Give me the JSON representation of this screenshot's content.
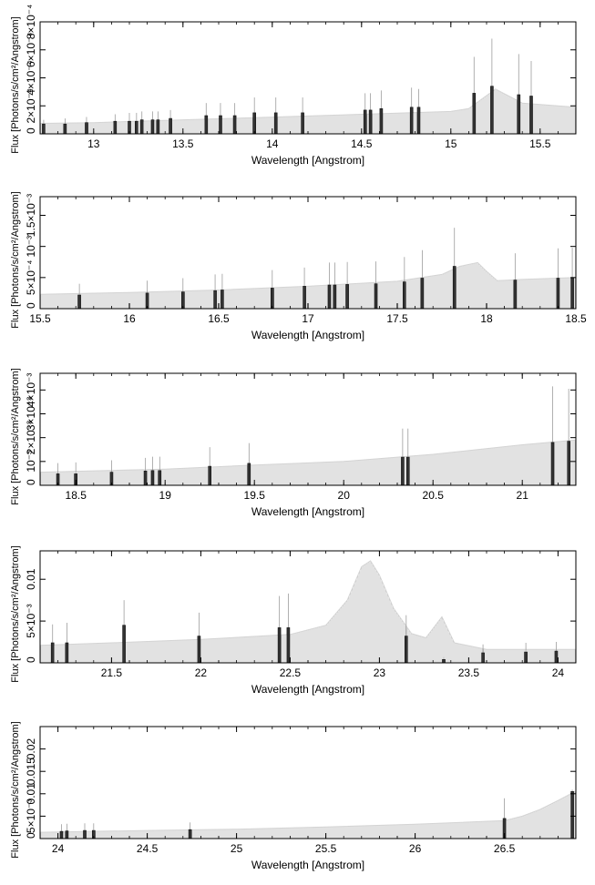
{
  "chart_data": [
    {
      "type": "bar",
      "xlabel": "Wavelength [Angstrom]",
      "ylabel": "Flux [Photons/s/cm²/Angstrom]",
      "xlim": [
        12.7,
        15.7
      ],
      "ylim": [
        0,
        0.0008
      ],
      "grid": false,
      "x_ticks": [
        13,
        13.5,
        14,
        14.5,
        15,
        15.5
      ],
      "x_tick_labels": [
        "13",
        "13.5",
        "14",
        "14.5",
        "15",
        "15.5"
      ],
      "y_ticks": [
        0,
        0.0002,
        0.0004,
        0.0006,
        0.0008
      ],
      "y_tick_labels": [
        "0",
        "2×10⁻⁴",
        "4×10⁻⁴",
        "6×10⁻⁴",
        "8×10⁻⁴"
      ],
      "continuum": [
        {
          "x": 12.7,
          "y": 7.5e-05
        },
        {
          "x": 13.0,
          "y": 8e-05
        },
        {
          "x": 13.5,
          "y": 0.0001
        },
        {
          "x": 14.0,
          "y": 0.00012
        },
        {
          "x": 14.5,
          "y": 0.00014
        },
        {
          "x": 15.0,
          "y": 0.00016
        },
        {
          "x": 15.1,
          "y": 0.00018
        },
        {
          "x": 15.25,
          "y": 0.00032
        },
        {
          "x": 15.4,
          "y": 0.00022
        },
        {
          "x": 15.7,
          "y": 0.00019
        }
      ],
      "lines": [
        {
          "x": 12.72,
          "y": 7e-05,
          "err": 3e-05
        },
        {
          "x": 12.84,
          "y": 7e-05,
          "err": 4e-05
        },
        {
          "x": 12.96,
          "y": 8e-05,
          "err": 4e-05
        },
        {
          "x": 13.12,
          "y": 9e-05,
          "err": 5e-05
        },
        {
          "x": 13.2,
          "y": 9e-05,
          "err": 6e-05
        },
        {
          "x": 13.24,
          "y": 9e-05,
          "err": 6e-05
        },
        {
          "x": 13.27,
          "y": 0.0001,
          "err": 6e-05
        },
        {
          "x": 13.33,
          "y": 0.0001,
          "err": 6e-05
        },
        {
          "x": 13.36,
          "y": 0.0001,
          "err": 6e-05
        },
        {
          "x": 13.43,
          "y": 0.00011,
          "err": 6e-05
        },
        {
          "x": 13.63,
          "y": 0.00013,
          "err": 9e-05
        },
        {
          "x": 13.71,
          "y": 0.00013,
          "err": 9e-05
        },
        {
          "x": 13.79,
          "y": 0.00013,
          "err": 9e-05
        },
        {
          "x": 13.9,
          "y": 0.00015,
          "err": 0.00011
        },
        {
          "x": 14.02,
          "y": 0.00015,
          "err": 0.00011
        },
        {
          "x": 14.17,
          "y": 0.00015,
          "err": 0.00011
        },
        {
          "x": 14.52,
          "y": 0.00017,
          "err": 0.00012
        },
        {
          "x": 14.55,
          "y": 0.00017,
          "err": 0.00012
        },
        {
          "x": 14.61,
          "y": 0.00018,
          "err": 0.00013
        },
        {
          "x": 14.78,
          "y": 0.00019,
          "err": 0.00014
        },
        {
          "x": 14.82,
          "y": 0.00019,
          "err": 0.00013
        },
        {
          "x": 15.13,
          "y": 0.00029,
          "err": 0.00026
        },
        {
          "x": 15.23,
          "y": 0.00034,
          "err": 0.00034
        },
        {
          "x": 15.38,
          "y": 0.00028,
          "err": 0.00029
        },
        {
          "x": 15.45,
          "y": 0.00027,
          "err": 0.00025
        }
      ]
    },
    {
      "type": "bar",
      "xlabel": "Wavelength [Angstrom]",
      "ylabel": "Flux [Photons/s/cm²/Angstrom]",
      "xlim": [
        15.5,
        18.5
      ],
      "ylim": [
        0,
        0.0018
      ],
      "grid": false,
      "x_ticks": [
        15.5,
        16,
        16.5,
        17,
        17.5,
        18,
        18.5
      ],
      "x_tick_labels": [
        "15.5",
        "16",
        "16.5",
        "17",
        "17.5",
        "18",
        "18.5"
      ],
      "y_ticks": [
        0,
        0.0005,
        0.001,
        0.0015
      ],
      "y_tick_labels": [
        "0",
        "5×10⁻⁴",
        "10⁻³",
        "1.5×10⁻³"
      ],
      "continuum": [
        {
          "x": 15.5,
          "y": 0.00023
        },
        {
          "x": 16.0,
          "y": 0.00026
        },
        {
          "x": 16.5,
          "y": 0.0003
        },
        {
          "x": 17.0,
          "y": 0.00036
        },
        {
          "x": 17.5,
          "y": 0.00044
        },
        {
          "x": 17.75,
          "y": 0.00055
        },
        {
          "x": 17.85,
          "y": 0.00068
        },
        {
          "x": 17.95,
          "y": 0.00074
        },
        {
          "x": 18.0,
          "y": 0.0006
        },
        {
          "x": 18.06,
          "y": 0.00045
        },
        {
          "x": 18.2,
          "y": 0.00047
        },
        {
          "x": 18.5,
          "y": 0.0005
        }
      ],
      "lines": [
        {
          "x": 15.72,
          "y": 0.00022,
          "err": 0.00018
        },
        {
          "x": 16.1,
          "y": 0.00025,
          "err": 0.0002
        },
        {
          "x": 16.3,
          "y": 0.00027,
          "err": 0.00022
        },
        {
          "x": 16.48,
          "y": 0.00029,
          "err": 0.00026
        },
        {
          "x": 16.52,
          "y": 0.0003,
          "err": 0.00026
        },
        {
          "x": 16.8,
          "y": 0.00033,
          "err": 0.00029
        },
        {
          "x": 16.98,
          "y": 0.00036,
          "err": 0.0003
        },
        {
          "x": 17.12,
          "y": 0.00038,
          "err": 0.00036
        },
        {
          "x": 17.15,
          "y": 0.00038,
          "err": 0.00036
        },
        {
          "x": 17.22,
          "y": 0.00039,
          "err": 0.00036
        },
        {
          "x": 17.38,
          "y": 0.0004,
          "err": 0.00036
        },
        {
          "x": 17.54,
          "y": 0.00043,
          "err": 0.0004
        },
        {
          "x": 17.64,
          "y": 0.00049,
          "err": 0.00045
        },
        {
          "x": 17.82,
          "y": 0.00068,
          "err": 0.00062
        },
        {
          "x": 18.16,
          "y": 0.00046,
          "err": 0.00043
        },
        {
          "x": 18.4,
          "y": 0.00049,
          "err": 0.00048
        },
        {
          "x": 18.48,
          "y": 0.0005,
          "err": 0.00048
        }
      ]
    },
    {
      "type": "bar",
      "xlabel": "Wavelength [Angstrom]",
      "ylabel": "Flux [Photons/s/cm²/Angstrom]",
      "xlim": [
        18.3,
        21.3
      ],
      "ylim": [
        0,
        0.0047
      ],
      "grid": false,
      "x_ticks": [
        18.5,
        19,
        19.5,
        20,
        20.5,
        21
      ],
      "x_tick_labels": [
        "18.5",
        "19",
        "19.5",
        "20",
        "20.5",
        "21"
      ],
      "y_ticks": [
        0,
        0.001,
        0.002,
        0.003,
        0.004
      ],
      "y_tick_labels": [
        "0",
        "10⁻³",
        "2×10⁻³",
        "3×10⁻³",
        "4×10⁻³"
      ],
      "continuum": [
        {
          "x": 18.3,
          "y": 0.00055
        },
        {
          "x": 19.0,
          "y": 0.00068
        },
        {
          "x": 19.5,
          "y": 0.00085
        },
        {
          "x": 20.0,
          "y": 0.001
        },
        {
          "x": 20.5,
          "y": 0.0013
        },
        {
          "x": 21.0,
          "y": 0.0017
        },
        {
          "x": 21.3,
          "y": 0.0019
        }
      ],
      "lines": [
        {
          "x": 18.4,
          "y": 0.00048,
          "err": 0.00045
        },
        {
          "x": 18.5,
          "y": 0.00048,
          "err": 0.00048
        },
        {
          "x": 18.7,
          "y": 0.00055,
          "err": 0.0005
        },
        {
          "x": 18.89,
          "y": 0.0006,
          "err": 0.00055
        },
        {
          "x": 18.93,
          "y": 0.00062,
          "err": 0.00058
        },
        {
          "x": 18.97,
          "y": 0.00062,
          "err": 0.00058
        },
        {
          "x": 19.25,
          "y": 0.0008,
          "err": 0.0008
        },
        {
          "x": 19.47,
          "y": 0.00092,
          "err": 0.00085
        },
        {
          "x": 20.33,
          "y": 0.00118,
          "err": 0.0012
        },
        {
          "x": 20.36,
          "y": 0.00118,
          "err": 0.0012
        },
        {
          "x": 21.17,
          "y": 0.0018,
          "err": 0.00235
        },
        {
          "x": 21.26,
          "y": 0.00185,
          "err": 0.0022
        }
      ]
    },
    {
      "type": "bar",
      "xlabel": "Wavelength [Angstrom]",
      "ylabel": "Flux [Photons/s/cm²/Angstrom]",
      "xlim": [
        21.1,
        24.1
      ],
      "ylim": [
        0,
        0.0134
      ],
      "grid": false,
      "x_ticks": [
        21.5,
        22,
        22.5,
        23,
        23.5,
        24
      ],
      "x_tick_labels": [
        "21.5",
        "22",
        "22.5",
        "23",
        "23.5",
        "24"
      ],
      "y_ticks": [
        0,
        0.005,
        0.01
      ],
      "y_tick_labels": [
        "0",
        "5×10⁻³",
        "0.01"
      ],
      "continuum": [
        {
          "x": 21.1,
          "y": 0.0021
        },
        {
          "x": 21.5,
          "y": 0.0024
        },
        {
          "x": 22.0,
          "y": 0.0028
        },
        {
          "x": 22.5,
          "y": 0.0034
        },
        {
          "x": 22.7,
          "y": 0.0045
        },
        {
          "x": 22.82,
          "y": 0.0075
        },
        {
          "x": 22.9,
          "y": 0.0115
        },
        {
          "x": 22.95,
          "y": 0.0122
        },
        {
          "x": 23.0,
          "y": 0.0105
        },
        {
          "x": 23.08,
          "y": 0.0065
        },
        {
          "x": 23.18,
          "y": 0.0035
        },
        {
          "x": 23.26,
          "y": 0.003
        },
        {
          "x": 23.35,
          "y": 0.0055
        },
        {
          "x": 23.42,
          "y": 0.0024
        },
        {
          "x": 23.6,
          "y": 0.0016
        },
        {
          "x": 24.1,
          "y": 0.0016
        }
      ],
      "lines": [
        {
          "x": 21.17,
          "y": 0.0024,
          "err": 0.0022
        },
        {
          "x": 21.25,
          "y": 0.0024,
          "err": 0.0024
        },
        {
          "x": 21.57,
          "y": 0.0045,
          "err": 0.003
        },
        {
          "x": 21.99,
          "y": 0.0032,
          "err": 0.0028
        },
        {
          "x": 22.44,
          "y": 0.0042,
          "err": 0.0038
        },
        {
          "x": 22.49,
          "y": 0.0042,
          "err": 0.0041
        },
        {
          "x": 23.15,
          "y": 0.0032,
          "err": 0.0025
        },
        {
          "x": 23.36,
          "y": 0.0004,
          "err": 0.0003
        },
        {
          "x": 23.58,
          "y": 0.0012,
          "err": 0.001
        },
        {
          "x": 23.82,
          "y": 0.0013,
          "err": 0.0011
        },
        {
          "x": 23.99,
          "y": 0.0014,
          "err": 0.0011
        }
      ]
    },
    {
      "type": "bar",
      "xlabel": "Wavelength [Angstrom]",
      "ylabel": "Flux [Photons/s/cm²/Angstrom]",
      "xlim": [
        23.9,
        26.9
      ],
      "ylim": [
        0,
        0.025
      ],
      "grid": false,
      "x_ticks": [
        24,
        24.5,
        25,
        25.5,
        26,
        26.5
      ],
      "x_tick_labels": [
        "24",
        "24.5",
        "25",
        "25.5",
        "26",
        "26.5"
      ],
      "y_ticks": [
        0,
        0.005,
        0.01,
        0.015,
        0.02
      ],
      "y_tick_labels": [
        "0",
        "5×10⁻³",
        "0.01",
        "0.015",
        "0.02"
      ],
      "continuum": [
        {
          "x": 23.9,
          "y": 0.0014
        },
        {
          "x": 24.5,
          "y": 0.0018
        },
        {
          "x": 25.0,
          "y": 0.0021
        },
        {
          "x": 25.5,
          "y": 0.0026
        },
        {
          "x": 26.0,
          "y": 0.0032
        },
        {
          "x": 26.5,
          "y": 0.004
        },
        {
          "x": 26.6,
          "y": 0.005
        },
        {
          "x": 26.7,
          "y": 0.0065
        },
        {
          "x": 26.8,
          "y": 0.0085
        },
        {
          "x": 26.9,
          "y": 0.0106
        }
      ],
      "lines": [
        {
          "x": 24.02,
          "y": 0.0016,
          "err": 0.0016
        },
        {
          "x": 24.05,
          "y": 0.0017,
          "err": 0.0016
        },
        {
          "x": 24.15,
          "y": 0.0018,
          "err": 0.0016
        },
        {
          "x": 24.2,
          "y": 0.0018,
          "err": 0.0016
        },
        {
          "x": 24.74,
          "y": 0.002,
          "err": 0.0016
        },
        {
          "x": 26.5,
          "y": 0.0045,
          "err": 0.0045
        },
        {
          "x": 26.88,
          "y": 0.0105,
          "err": 0.0004
        }
      ]
    }
  ]
}
